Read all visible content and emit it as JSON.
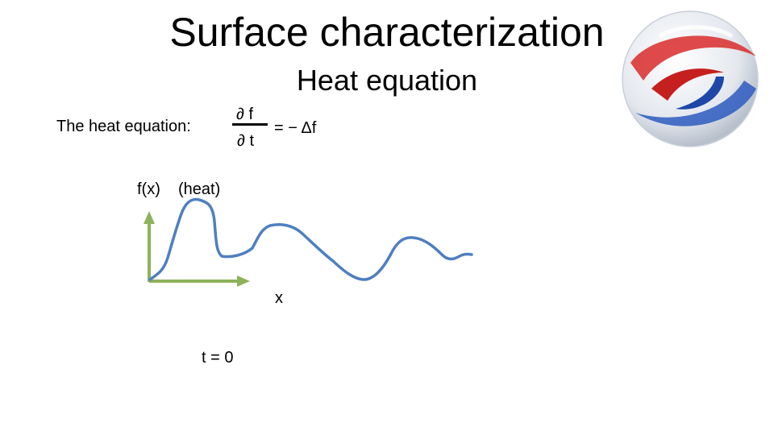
{
  "slide": {
    "title": "Surface characterization",
    "subtitle": "Heat equation"
  },
  "equation": {
    "label": "The heat equation:",
    "numerator": "∂ f",
    "denominator": "∂ t",
    "rhs": "=  − Δf"
  },
  "graph": {
    "y_label": "f(x)",
    "y_note": "(heat)",
    "x_label": "x",
    "time_label": "t = 0",
    "curve_color": "#4f7fc0",
    "axis_color": "#8db25a"
  }
}
